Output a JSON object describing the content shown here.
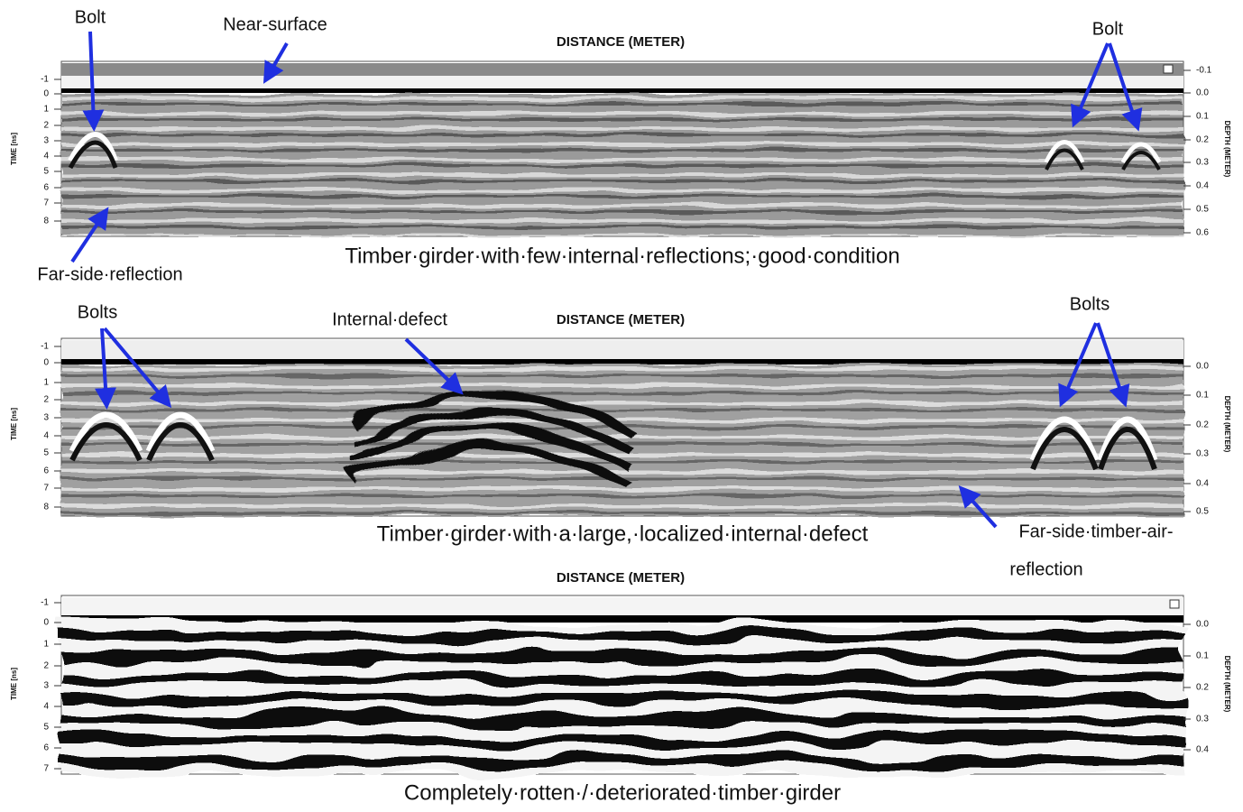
{
  "panels": [
    {
      "axis_title": "DISTANCE (METER)",
      "time_label": "TIME [ns]",
      "depth_label": "DEPTH (METER)",
      "time_ticks": [
        "-1",
        "0",
        "1",
        "2",
        "3",
        "4",
        "5",
        "6",
        "7",
        "8"
      ],
      "depth_ticks": [
        "-0.1",
        "0.0",
        "0.1",
        "0.2",
        "0.3",
        "0.4",
        "0.5",
        "0.6"
      ],
      "caption": "Timber·girder·with·few·internal·reflections;·good·condition"
    },
    {
      "axis_title": "DISTANCE (METER)",
      "time_label": "TIME [ns]",
      "depth_label": "DEPTH (METER)",
      "time_ticks": [
        "-1",
        "0",
        "1",
        "2",
        "3",
        "4",
        "5",
        "6",
        "7",
        "8"
      ],
      "depth_ticks": [
        "0.0",
        "0.1",
        "0.2",
        "0.3",
        "0.4",
        "0.5"
      ],
      "caption": "Timber·girder·with·a·large,·localized·internal·defect"
    },
    {
      "axis_title": "DISTANCE (METER)",
      "time_label": "TIME [ns]",
      "depth_label": "DEPTH (METER)",
      "time_ticks": [
        "-1",
        "0",
        "1",
        "2",
        "3",
        "4",
        "5",
        "6",
        "7"
      ],
      "depth_ticks": [
        "0.0",
        "0.1",
        "0.2",
        "0.3",
        "0.4"
      ],
      "caption": "Completely·rotten·/·deteriorated·timber·girder"
    }
  ],
  "annotations": [
    {
      "text": "Bolt"
    },
    {
      "text": "Near-surface"
    },
    {
      "text": "Bolt"
    },
    {
      "text": "Far-side·reflection"
    },
    {
      "text": "Bolts"
    },
    {
      "text": "Internal·defect"
    },
    {
      "text": "Bolts"
    },
    {
      "text": "Far-side·timber-air-"
    },
    {
      "text": "reflection"
    }
  ]
}
